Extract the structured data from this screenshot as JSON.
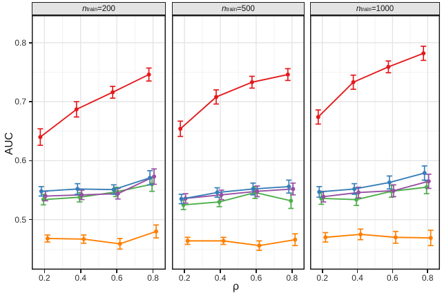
{
  "figure": {
    "y_axis_title": "AUC",
    "x_axis_title": "ρ",
    "y_tick_labels": [
      "0.8",
      "0.7",
      "0.6",
      "0.5"
    ],
    "x_tick_labels": [
      "0.2",
      "0.4",
      "0.6",
      "0.8"
    ]
  },
  "panels": [
    {
      "strip": {
        "var": "n",
        "sub": "train",
        "eq": " = ",
        "value": "200"
      }
    },
    {
      "strip": {
        "var": "n",
        "sub": "train",
        "eq": " = ",
        "value": "500"
      }
    },
    {
      "strip": {
        "var": "n",
        "sub": "train",
        "eq": " = ",
        "value": "1000"
      }
    }
  ],
  "chart_data": {
    "type": "line",
    "description": "Faceted line chart with point markers and ±1 SE error bars; 5 unlabeled color series per facet; no legend shown",
    "x": [
      0.2,
      0.4,
      0.6,
      0.8
    ],
    "xlabel": "ρ",
    "ylabel": "AUC",
    "x_ticks": [
      0.2,
      0.4,
      0.6,
      0.8
    ],
    "y_ticks": [
      0.8,
      0.7,
      0.6,
      0.5
    ],
    "x_minor": [
      0.3,
      0.5,
      0.7
    ],
    "y_minor": [
      0.45,
      0.55,
      0.65,
      0.75
    ],
    "xlim": [
      0.13,
      0.8702
    ],
    "ylim": [
      0.4152,
      0.8466
    ],
    "grid": "major+minor",
    "legend": "none",
    "error_bars": true,
    "palette": {
      "red": "#E41A1C",
      "blue": "#377EB8",
      "green": "#4DAF4A",
      "purple": "#984EA3",
      "orange": "#FF7F00"
    },
    "dodge": {
      "red": -6,
      "blue": -4.5,
      "green": -1.5,
      "purple": 1.5,
      "orange": 4.5
    },
    "draw_order": [
      "orange",
      "green",
      "purple",
      "blue",
      "red"
    ],
    "facets": [
      {
        "label": "n_train = 200",
        "series": [
          {
            "name": "red",
            "values": [
              0.64,
              0.687,
              0.716,
              0.746
            ],
            "errors": [
              0.014,
              0.013,
              0.01,
              0.011
            ]
          },
          {
            "name": "blue",
            "values": [
              0.548,
              0.552,
              0.551,
              0.571
            ],
            "errors": [
              0.008,
              0.009,
              0.008,
              0.012
            ]
          },
          {
            "name": "purple",
            "values": [
              0.54,
              0.542,
              0.544,
              0.573
            ],
            "errors": [
              0.008,
              0.008,
              0.009,
              0.013
            ]
          },
          {
            "name": "green",
            "values": [
              0.534,
              0.538,
              0.547,
              0.56
            ],
            "errors": [
              0.009,
              0.008,
              0.008,
              0.012
            ]
          },
          {
            "name": "orange",
            "values": [
              0.468,
              0.467,
              0.459,
              0.48
            ],
            "errors": [
              0.006,
              0.007,
              0.009,
              0.011
            ]
          }
        ]
      },
      {
        "label": "n_train = 500",
        "series": [
          {
            "name": "red",
            "values": [
              0.654,
              0.708,
              0.733,
              0.746
            ],
            "errors": [
              0.013,
              0.012,
              0.01,
              0.01
            ]
          },
          {
            "name": "blue",
            "values": [
              0.535,
              0.546,
              0.552,
              0.556
            ],
            "errors": [
              0.008,
              0.008,
              0.01,
              0.011
            ]
          },
          {
            "name": "purple",
            "values": [
              0.536,
              0.542,
              0.548,
              0.552
            ],
            "errors": [
              0.008,
              0.008,
              0.009,
              0.01
            ]
          },
          {
            "name": "green",
            "values": [
              0.525,
              0.53,
              0.546,
              0.532
            ],
            "errors": [
              0.008,
              0.008,
              0.01,
              0.013
            ]
          },
          {
            "name": "orange",
            "values": [
              0.464,
              0.464,
              0.456,
              0.466
            ],
            "errors": [
              0.006,
              0.006,
              0.008,
              0.01
            ]
          }
        ]
      },
      {
        "label": "n_train = 1000",
        "series": [
          {
            "name": "red",
            "values": [
              0.674,
              0.733,
              0.759,
              0.782
            ],
            "errors": [
              0.012,
              0.012,
              0.01,
              0.012
            ]
          },
          {
            "name": "blue",
            "values": [
              0.547,
              0.552,
              0.563,
              0.579
            ],
            "errors": [
              0.009,
              0.009,
              0.011,
              0.012
            ]
          },
          {
            "name": "purple",
            "values": [
              0.539,
              0.546,
              0.549,
              0.565
            ],
            "errors": [
              0.009,
              0.009,
              0.01,
              0.012
            ]
          },
          {
            "name": "green",
            "values": [
              0.536,
              0.534,
              0.548,
              0.555
            ],
            "errors": [
              0.01,
              0.01,
              0.01,
              0.011
            ]
          },
          {
            "name": "orange",
            "values": [
              0.47,
              0.475,
              0.47,
              0.469
            ],
            "errors": [
              0.008,
              0.009,
              0.01,
              0.013
            ]
          }
        ]
      }
    ]
  }
}
